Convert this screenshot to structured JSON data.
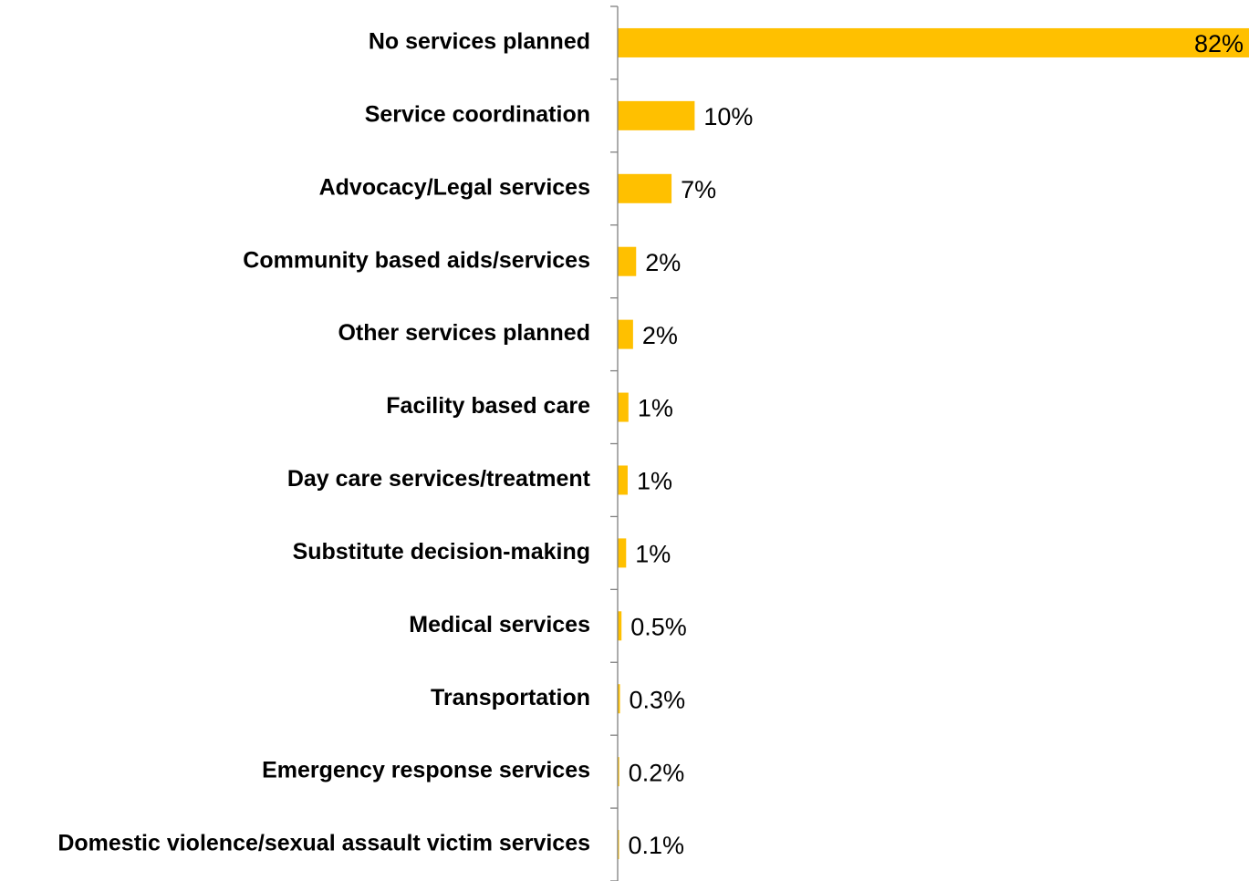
{
  "chart_data": {
    "type": "bar",
    "orientation": "horizontal",
    "categories": [
      "No services planned",
      "Service coordination",
      "Advocacy/Legal services",
      "Community based aids/services",
      "Other services planned",
      "Facility based care",
      "Day care services/treatment",
      "Substitute decision-making",
      "Medical services",
      "Transportation",
      "Emergency response services",
      "Domestic violence/sexual assault victim services"
    ],
    "values": [
      82,
      10,
      7,
      2.4,
      2,
      1.4,
      1.3,
      1.1,
      0.5,
      0.3,
      0.2,
      0.1
    ],
    "data_labels": [
      "82%",
      "10%",
      "7%",
      "2%",
      "2%",
      "1%",
      "1%",
      "1%",
      "0.5%",
      "0.3%",
      "0.2%",
      "0.1%"
    ],
    "bar_color": "#FFC000",
    "axis_color": "#808080",
    "xlim": [
      0,
      82
    ],
    "grid": false,
    "legend": "none"
  }
}
